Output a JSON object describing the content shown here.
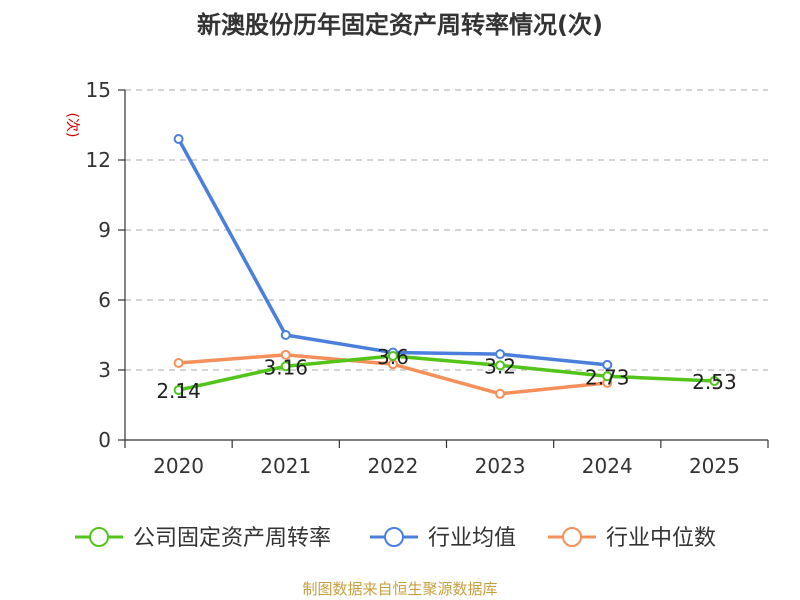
{
  "chart_data": {
    "type": "line",
    "title": "新澳股份历年固定资产周转率情况(次)",
    "ylabel": "(次)",
    "xlabel": "",
    "categories": [
      "2020",
      "2021",
      "2022",
      "2023",
      "2024",
      "2025"
    ],
    "ylim": [
      0,
      15
    ],
    "yticks": [
      "0",
      "3",
      "6",
      "9",
      "12",
      "15"
    ],
    "grid": true,
    "legend_position": "bottom",
    "series": [
      {
        "name": "公司固定资产周转率",
        "color": "#52c41a",
        "values": [
          2.14,
          3.16,
          3.6,
          3.2,
          2.73,
          2.53
        ],
        "labels": [
          "2.14",
          "3.16",
          "3.6",
          "3.2",
          "2.73",
          "2.53"
        ]
      },
      {
        "name": "行业均值",
        "color": "#4a7fdc",
        "values": [
          12.9,
          4.5,
          3.75,
          3.68,
          3.22,
          null
        ]
      },
      {
        "name": "行业中位数",
        "color": "#f5905a",
        "values": [
          3.3,
          3.65,
          3.25,
          1.98,
          2.45,
          null
        ]
      }
    ],
    "source": "制图数据来自恒生聚源数据库"
  }
}
